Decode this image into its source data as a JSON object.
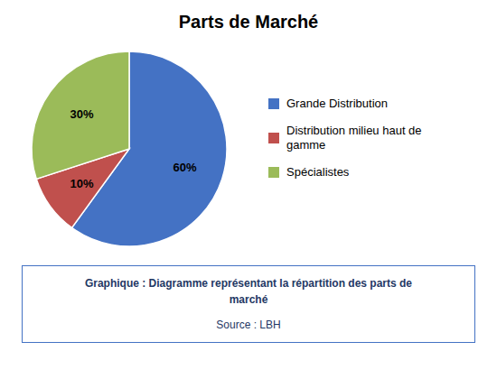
{
  "chart_data": {
    "type": "pie",
    "title": "Parts de Marché",
    "categories": [
      "Grande Distribution",
      "Distribution milieu haut de\ngamme",
      "Spécialistes"
    ],
    "values": [
      60,
      10,
      30
    ],
    "value_labels": [
      "60%",
      "10%",
      "30%"
    ],
    "colors": [
      "#4472C4",
      "#C0504D",
      "#9BBB59"
    ],
    "data_labels": true,
    "legend": "right",
    "annotations": [
      "Graphique : Diagramme représentant la répartition des parts de",
      "marché",
      "Source : LBH"
    ]
  }
}
